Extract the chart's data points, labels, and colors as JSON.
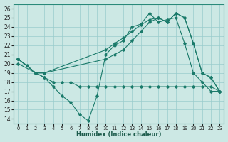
{
  "xlabel": "Humidex (Indice chaleur)",
  "bg_color": "#cce8e4",
  "grid_color": "#99cccc",
  "line_color": "#1a7a6a",
  "xlim": [
    -0.5,
    23.5
  ],
  "ylim": [
    13.5,
    26.5
  ],
  "xticks": [
    0,
    1,
    2,
    3,
    4,
    5,
    6,
    7,
    8,
    9,
    10,
    11,
    12,
    13,
    14,
    15,
    16,
    17,
    18,
    19,
    20,
    21,
    22,
    23
  ],
  "yticks": [
    14,
    15,
    16,
    17,
    18,
    19,
    20,
    21,
    22,
    23,
    24,
    25,
    26
  ],
  "series": [
    {
      "x": [
        0,
        1,
        2,
        3,
        4,
        5,
        6,
        7,
        8,
        9,
        10,
        11,
        12,
        13,
        14,
        15,
        16,
        17,
        18,
        19,
        20,
        21,
        22,
        23
      ],
      "y": [
        20.5,
        19.8,
        19.0,
        18.5,
        17.5,
        16.5,
        15.8,
        14.5,
        13.8,
        16.5,
        21.0,
        22.0,
        22.5,
        24.0,
        24.3,
        25.5,
        24.5,
        24.8,
        25.0,
        22.2,
        19.0,
        18.0,
        17.0,
        17.0
      ]
    },
    {
      "x": [
        0,
        2,
        3,
        4,
        5,
        6,
        7,
        8,
        9,
        10,
        11,
        12,
        13,
        14,
        15,
        16,
        17,
        18,
        19,
        20,
        21,
        22,
        23
      ],
      "y": [
        20.0,
        19.0,
        18.5,
        18.0,
        18.0,
        18.0,
        17.5,
        17.5,
        17.5,
        17.5,
        17.5,
        17.5,
        17.5,
        17.5,
        17.5,
        17.5,
        17.5,
        17.5,
        17.5,
        17.5,
        17.5,
        17.5,
        17.0
      ]
    },
    {
      "x": [
        0,
        2,
        3,
        10,
        11,
        12,
        13,
        14,
        15,
        16,
        17,
        18,
        19,
        20,
        21,
        22,
        23
      ],
      "y": [
        20.5,
        19.0,
        19.0,
        21.5,
        22.2,
        22.8,
        23.5,
        24.2,
        24.8,
        25.0,
        24.5,
        25.5,
        25.0,
        22.2,
        19.0,
        18.5,
        17.0
      ]
    },
    {
      "x": [
        0,
        2,
        3,
        10,
        11,
        12,
        13,
        14,
        15,
        16,
        17,
        18,
        19,
        20,
        21,
        22,
        23
      ],
      "y": [
        20.5,
        19.0,
        19.0,
        20.5,
        21.0,
        21.5,
        22.5,
        23.5,
        24.5,
        25.0,
        24.5,
        25.5,
        25.0,
        22.2,
        19.0,
        18.5,
        17.0
      ]
    }
  ]
}
